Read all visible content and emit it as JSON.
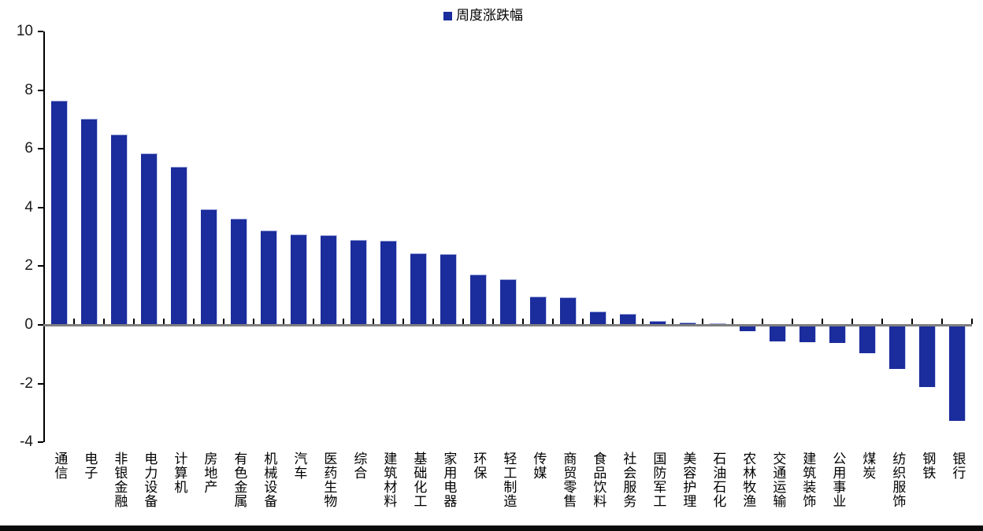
{
  "chart_data": {
    "type": "bar",
    "title": "",
    "legend": [
      {
        "label": "周度涨跌幅",
        "color": "#1b2c9c"
      }
    ],
    "legend_position": "top-center",
    "categories": [
      "通信",
      "电子",
      "非银金融",
      "电力设备",
      "计算机",
      "房地产",
      "有色金属",
      "机械设备",
      "汽车",
      "医药生物",
      "综合",
      "建筑材料",
      "基础化工",
      "家用电器",
      "环保",
      "轻工制造",
      "传媒",
      "商贸零售",
      "食品饮料",
      "社会服务",
      "国防军工",
      "美容护理",
      "石油石化",
      "农林牧渔",
      "交通运输",
      "建筑装饰",
      "公用事业",
      "煤炭",
      "纺织服饰",
      "钢铁",
      "银行"
    ],
    "values": [
      7.65,
      7.02,
      6.5,
      5.84,
      5.38,
      3.95,
      3.61,
      3.21,
      3.08,
      3.05,
      2.9,
      2.86,
      2.45,
      2.42,
      1.72,
      1.55,
      0.97,
      0.93,
      0.45,
      0.38,
      0.14,
      0.08,
      0.05,
      -0.15,
      -0.5,
      -0.54,
      -0.57,
      -0.9,
      -1.44,
      -2.06,
      -3.23
    ],
    "xlabel": "",
    "ylabel": "",
    "ylim": [
      -4,
      10
    ],
    "yticks": [
      10,
      8,
      6,
      4,
      2,
      0,
      -2,
      -4
    ],
    "grid": false,
    "colors": {
      "bar_fill": "#1b2c9c",
      "bar_edge": "#cdd6f2",
      "axis": "#000000",
      "zero_line": "#7f7f7f",
      "text": "#000000",
      "bottom_strip": "#0a0a0a"
    }
  }
}
